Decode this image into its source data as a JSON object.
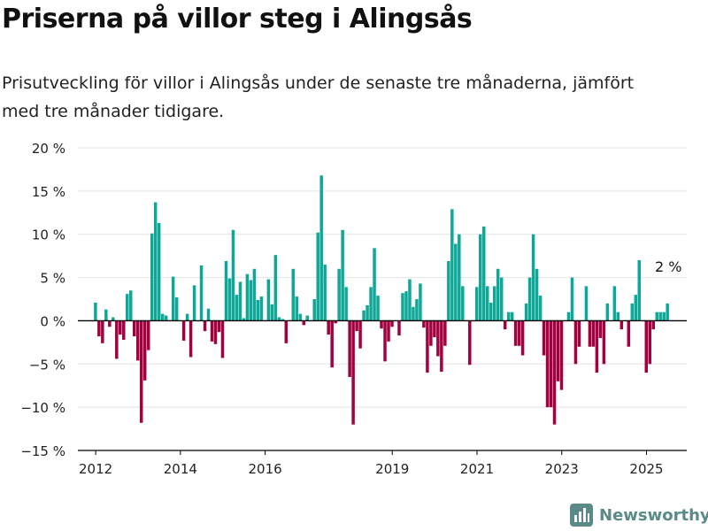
{
  "title": "Priserna på villor steg i Alingsås",
  "subtitle": "Prisutveckling för villor i Alingsås under de senaste tre månaderna, jämfört med tre månader tidigare.",
  "logo_text": "Newsworthy",
  "colors": {
    "positive": "#0fa898",
    "negative": "#a3003f",
    "grid": "#e4e4e4",
    "axis": "#000000",
    "logo": "#5a8a87"
  },
  "chart_data": {
    "type": "bar",
    "ylim": [
      -15,
      20
    ],
    "xlim": [
      2011.58,
      2025.95
    ],
    "y_ticks": [
      20,
      15,
      10,
      5,
      0,
      -5,
      -10,
      -15
    ],
    "y_tick_labels": [
      "20 %",
      "15 %",
      "10 %",
      "5 %",
      "0 %",
      "−5 %",
      "−10 %",
      "−15 %"
    ],
    "x_ticks": [
      2012,
      2014,
      2016,
      2019,
      2021,
      2023,
      2025
    ],
    "x_tick_labels": [
      "2012",
      "2014",
      "2016",
      "2019",
      "2021",
      "2023",
      "2025"
    ],
    "start": 2012.0,
    "step": 0.0833333,
    "values": [
      2.1,
      -1.8,
      -2.6,
      1.3,
      -0.7,
      0.4,
      -4.4,
      -1.6,
      -2.2,
      3.1,
      3.5,
      -1.8,
      -4.6,
      -11.8,
      -6.9,
      -3.4,
      10.1,
      13.7,
      11.3,
      0.8,
      0.6,
      0,
      5.1,
      2.7,
      0,
      -2.3,
      0.8,
      -4.2,
      4.1,
      0,
      6.4,
      -1.2,
      1.4,
      -2.4,
      -2.7,
      -1.3,
      -4.3,
      6.9,
      4.9,
      10.5,
      3,
      4.5,
      0.3,
      5.4,
      4.7,
      6,
      2.4,
      2.8,
      0,
      4.8,
      1.9,
      7.6,
      0.4,
      0.2,
      -2.6,
      0,
      6,
      2.8,
      0.8,
      -0.5,
      0.6,
      0,
      2.5,
      10.2,
      16.8,
      6.5,
      -1.6,
      -5.4,
      -0.3,
      6,
      10.5,
      3.9,
      -6.5,
      -12,
      -1.2,
      -3.2,
      1.2,
      1.8,
      3.9,
      8.4,
      2.9,
      -0.9,
      -4.7,
      -2.4,
      -0.7,
      0,
      -1.7,
      3.2,
      3.4,
      4.8,
      1.6,
      2.5,
      4.3,
      -0.8,
      -6,
      -2.9,
      -1.9,
      -4.1,
      -5.9,
      -2.9,
      6.9,
      12.9,
      8.9,
      10,
      4,
      0,
      -5.1,
      0,
      3.9,
      10,
      10.9,
      4,
      2.1,
      4,
      6,
      5,
      -1,
      1,
      1,
      -2.9,
      -2.9,
      -4,
      2,
      5,
      10,
      6,
      2.9,
      -4,
      -10,
      -10,
      -12,
      -7,
      -8,
      0,
      1,
      5,
      -5,
      -3,
      0,
      4,
      -3,
      -3,
      -6,
      -2,
      -5,
      2,
      0,
      4,
      1,
      -1,
      0,
      -3,
      2,
      3,
      7,
      0,
      -6,
      -5,
      -1,
      1,
      1,
      1,
      2
    ],
    "last_label": "2 %"
  }
}
